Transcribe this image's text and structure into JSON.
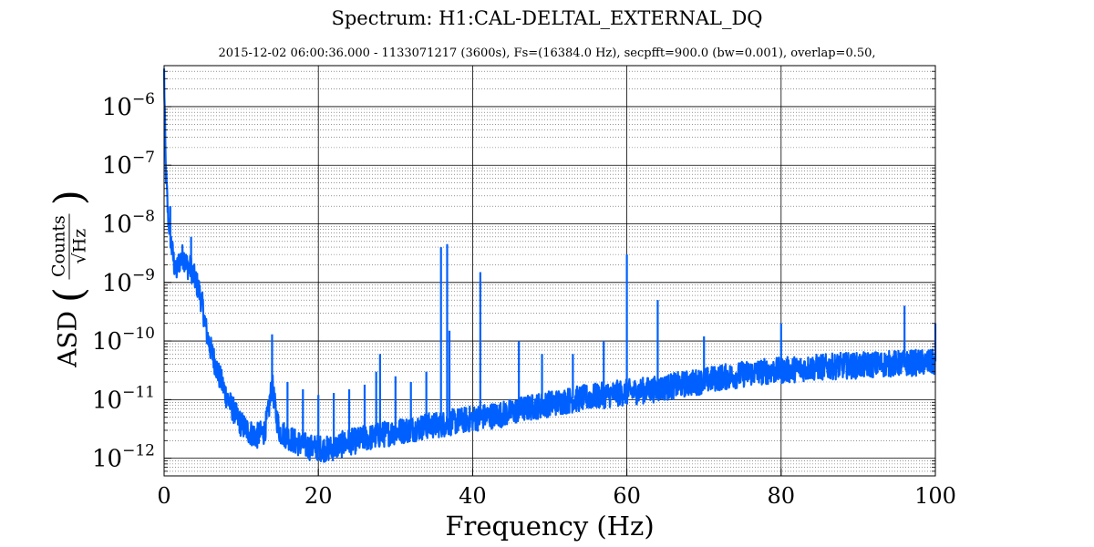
{
  "chart_data": {
    "type": "line",
    "title": "Spectrum: H1:CAL-DELTAL_EXTERNAL_DQ",
    "subtitle": "2015-12-02 06:00:36.000 - 1133071217 (3600s), Fs=(16384.0 Hz), secpfft=900.0 (bw=0.001), overlap=0.50,",
    "xlabel": "Frequency (Hz)",
    "ylabel": "ASD (Counts/√Hz)",
    "ylabel_parts": {
      "prefix": "ASD",
      "num": "Counts",
      "den": "√Hz"
    },
    "xlim": [
      0,
      100
    ],
    "ylim": [
      5e-13,
      5e-06
    ],
    "yscale": "log",
    "grid": true,
    "xticks": [
      0,
      20,
      40,
      60,
      80,
      100
    ],
    "xtick_labels": [
      "0",
      "20",
      "40",
      "60",
      "80",
      "100"
    ],
    "yticks": [
      1e-12,
      1e-11,
      1e-10,
      1e-09,
      1e-08,
      1e-07,
      1e-06
    ],
    "ytick_labels": [
      {
        "base": "10",
        "exp": "−12"
      },
      {
        "base": "10",
        "exp": "−11"
      },
      {
        "base": "10",
        "exp": "−10"
      },
      {
        "base": "10",
        "exp": "−9"
      },
      {
        "base": "10",
        "exp": "−8"
      },
      {
        "base": "10",
        "exp": "−7"
      },
      {
        "base": "10",
        "exp": "−6"
      }
    ],
    "series": [
      {
        "color": "#0060ff",
        "x": [
          0,
          0.2,
          0.5,
          1,
          1.5,
          2,
          2.5,
          3,
          3.5,
          4,
          4.5,
          5,
          5.5,
          6,
          6.5,
          7,
          7.5,
          8,
          8.5,
          9,
          9.5,
          10,
          11,
          12,
          13,
          13.5,
          14,
          14.5,
          15,
          16,
          17,
          18,
          19,
          20,
          21,
          22,
          23,
          24,
          25,
          26,
          27,
          28,
          29,
          30,
          32,
          34,
          36,
          38,
          40,
          42,
          44,
          46,
          48,
          50,
          52,
          54,
          56,
          58,
          60,
          62,
          64,
          66,
          68,
          70,
          72,
          74,
          76,
          78,
          80,
          82,
          84,
          86,
          88,
          90,
          92,
          94,
          96,
          98,
          100
        ],
        "y": [
          4e-06,
          1e-07,
          1.5e-08,
          4e-09,
          1.5e-09,
          2.5e-09,
          3e-09,
          2e-09,
          1.8e-09,
          1.2e-09,
          8e-10,
          4e-10,
          1.5e-10,
          8e-11,
          5e-11,
          3e-11,
          2e-11,
          1.3e-11,
          9e-12,
          7e-12,
          5e-12,
          4e-12,
          3e-12,
          2.5e-12,
          3e-12,
          6e-12,
          2e-11,
          6e-12,
          3e-12,
          2.5e-12,
          2e-12,
          1.8e-12,
          1.6e-12,
          1.6e-12,
          1.5e-12,
          1.6e-12,
          1.8e-12,
          2e-12,
          2.1e-12,
          2.3e-12,
          2.4e-12,
          2.6e-12,
          2.8e-12,
          3e-12,
          3.3e-12,
          3.7e-12,
          4e-12,
          4.5e-12,
          5e-12,
          5.5e-12,
          6e-12,
          7e-12,
          8e-12,
          9e-12,
          1e-11,
          1.1e-11,
          1.2e-11,
          1.3e-11,
          1.4e-11,
          1.5e-11,
          1.6e-11,
          1.8e-11,
          2e-11,
          2.2e-11,
          2.5e-11,
          2.7e-11,
          3e-11,
          3.2e-11,
          3.3e-11,
          3.5e-11,
          3.7e-11,
          3.8e-11,
          4e-11,
          4e-11,
          4.2e-11,
          4.3e-11,
          4.4e-11,
          4.5e-11,
          4.5e-11
        ]
      }
    ],
    "peaks": [
      {
        "x": 0.8,
        "y": 2e-08
      },
      {
        "x": 3.5,
        "y": 6e-09
      },
      {
        "x": 14,
        "y": 1.3e-10
      },
      {
        "x": 16,
        "y": 2e-11
      },
      {
        "x": 18,
        "y": 1.5e-11
      },
      {
        "x": 20,
        "y": 1.2e-11
      },
      {
        "x": 22,
        "y": 1.3e-11
      },
      {
        "x": 24,
        "y": 1.5e-11
      },
      {
        "x": 26,
        "y": 1.8e-11
      },
      {
        "x": 27.5,
        "y": 3e-11
      },
      {
        "x": 28,
        "y": 6e-11
      },
      {
        "x": 30,
        "y": 2.5e-11
      },
      {
        "x": 32,
        "y": 2e-11
      },
      {
        "x": 34,
        "y": 3e-11
      },
      {
        "x": 35.9,
        "y": 4e-09
      },
      {
        "x": 36.7,
        "y": 4.5e-09
      },
      {
        "x": 37,
        "y": 1.5e-10
      },
      {
        "x": 41,
        "y": 1.5e-09
      },
      {
        "x": 46,
        "y": 1e-10
      },
      {
        "x": 49,
        "y": 6e-11
      },
      {
        "x": 53,
        "y": 6e-11
      },
      {
        "x": 57,
        "y": 1e-10
      },
      {
        "x": 60,
        "y": 3e-09
      },
      {
        "x": 64,
        "y": 5e-10
      },
      {
        "x": 70,
        "y": 1.2e-10
      },
      {
        "x": 80,
        "y": 2e-10
      },
      {
        "x": 96,
        "y": 4e-10
      },
      {
        "x": 100,
        "y": 2e-10
      }
    ]
  }
}
